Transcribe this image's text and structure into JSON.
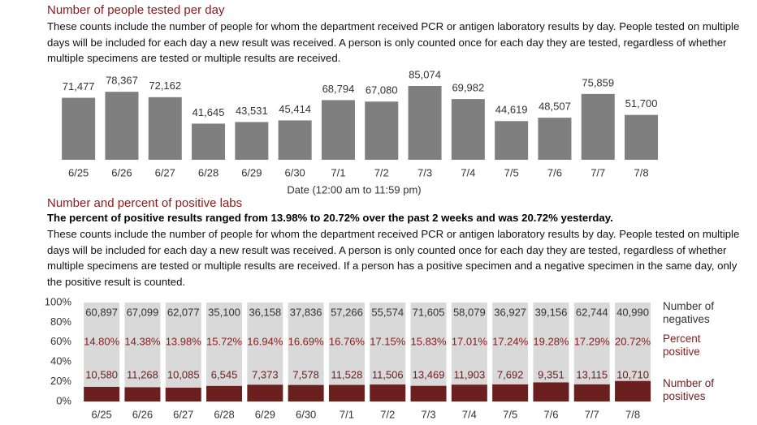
{
  "chart_data": [
    {
      "type": "bar",
      "title": "Number of people tested per day",
      "description": "These counts include the number of people for whom the department received PCR or antigen laboratory results by day. People tested on multiple days will be included for each day a new result was received. A person is only counted once for each day they are tested, regardless of whether multiple specimens are tested or multiple results are received.",
      "x_label": "Date (12:00 am to 11:59 pm)",
      "categories": [
        "6/25",
        "6/26",
        "6/27",
        "6/28",
        "6/29",
        "6/30",
        "7/1",
        "7/2",
        "7/3",
        "7/4",
        "7/5",
        "7/6",
        "7/7",
        "7/8"
      ],
      "values": [
        71477,
        78367,
        72162,
        41645,
        43531,
        45414,
        68794,
        67080,
        85074,
        69982,
        44619,
        48507,
        75859,
        51700
      ],
      "value_labels": [
        "71,477",
        "78,367",
        "72,162",
        "41,645",
        "43,531",
        "45,414",
        "68,794",
        "67,080",
        "85,074",
        "69,982",
        "44,619",
        "48,507",
        "75,859",
        "51,700"
      ],
      "color": "#7f7f7f"
    },
    {
      "type": "stacked_percent_bar",
      "title": "Number and percent of positive labs",
      "highlight": "The percent of positive results ranged from 13.98% to 20.72% over the past 2 weeks and was 20.72% yesterday.",
      "description": "These counts include the number of people for whom the department received PCR or antigen laboratory results by day. People tested on multiple days will be included for each day a new result was received. A person is only counted once for each day they are tested, regardless of whether multiple specimens are tested or multiple results are received. If a person has a positive specimen and a negative specimen in the same day, only the positive result is counted.",
      "categories": [
        "6/25",
        "6/26",
        "6/27",
        "6/28",
        "6/29",
        "6/30",
        "7/1",
        "7/2",
        "7/3",
        "7/4",
        "7/5",
        "7/6",
        "7/7",
        "7/8"
      ],
      "series": [
        {
          "name": "Number of positives",
          "color": "#6b1f1f",
          "values": [
            10580,
            11268,
            10085,
            6545,
            7373,
            7578,
            11528,
            11506,
            13469,
            11903,
            7692,
            9351,
            13115,
            10710
          ],
          "value_labels": [
            "10,580",
            "11,268",
            "10,085",
            "6,545",
            "7,373",
            "7,578",
            "11,528",
            "11,506",
            "13,469",
            "11,903",
            "7,692",
            "9,351",
            "13,115",
            "10,710"
          ]
        },
        {
          "name": "Number of negatives",
          "color": "#d9d9d9",
          "values": [
            60897,
            67099,
            62077,
            35100,
            36158,
            37836,
            57266,
            55574,
            71605,
            58079,
            36927,
            39156,
            62744,
            40990
          ],
          "value_labels": [
            "60,897",
            "67,099",
            "62,077",
            "35,100",
            "36,158",
            "37,836",
            "57,266",
            "55,574",
            "71,605",
            "58,079",
            "36,927",
            "39,156",
            "62,744",
            "40,990"
          ]
        }
      ],
      "percent_positive": {
        "name": "Percent positive",
        "values": [
          14.8,
          14.38,
          13.98,
          15.72,
          16.94,
          16.69,
          16.76,
          17.15,
          15.83,
          17.01,
          17.24,
          19.28,
          17.29,
          20.72
        ],
        "value_labels": [
          "14.80%",
          "14.38%",
          "13.98%",
          "15.72%",
          "16.94%",
          "16.69%",
          "16.76%",
          "17.15%",
          "15.83%",
          "17.01%",
          "17.24%",
          "19.28%",
          "17.29%",
          "20.72%"
        ]
      },
      "ylim": [
        0,
        100
      ],
      "yticks": [
        {
          "value": 0,
          "label": "0%"
        },
        {
          "value": 20,
          "label": "20%"
        },
        {
          "value": 40,
          "label": "40%"
        },
        {
          "value": 60,
          "label": "60%"
        },
        {
          "value": 80,
          "label": "80%"
        },
        {
          "value": 100,
          "label": "100%"
        }
      ]
    }
  ]
}
